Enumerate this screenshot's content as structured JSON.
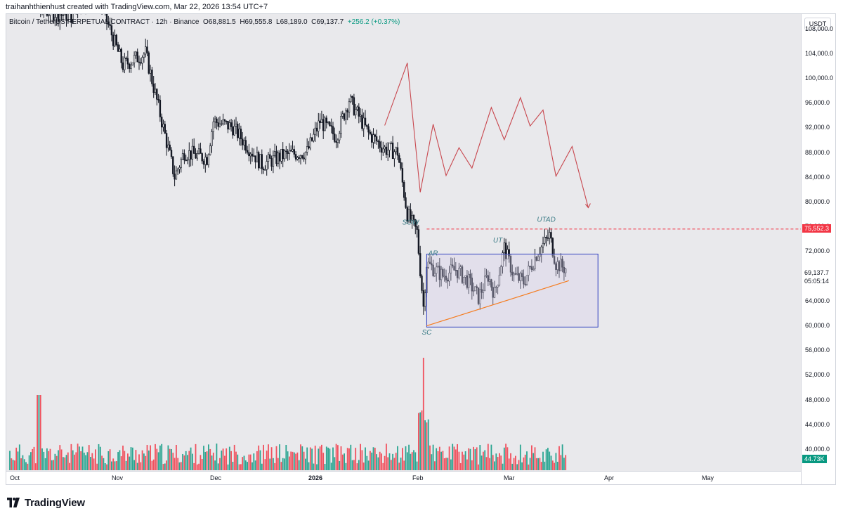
{
  "header": {
    "credit": "traihanhthienhust created with TradingView.com, Mar 22, 2026 13:54 UTC+7"
  },
  "legend": {
    "symbol": "Bitcoin / TetherUS PERPETUAL CONTRACT · 12h · Binance",
    "open": "O68,881.5",
    "high": "H69,555.8",
    "low": "L68,189.0",
    "close": "C69,137.7",
    "change": "+256.2 (+0.37%)"
  },
  "price_scale": {
    "currency": "USDT",
    "ticks": [
      "108,000.0",
      "104,000.0",
      "100,000.0",
      "96,000.0",
      "92,000.0",
      "88,000.0",
      "84,000.0",
      "80,000.0",
      "76,000.0",
      "72,000.0",
      "68,000.0",
      "64,000.0",
      "60,000.0",
      "56,000.0",
      "52,000.0",
      "48,000.0",
      "44,000.0",
      "40,000.0"
    ],
    "alert_label": "75,552.3",
    "last_price": "69,137.7",
    "countdown": "05:05:14",
    "volume_label": "44.73K"
  },
  "time_scale": {
    "ticks": [
      "Oct",
      "Nov",
      "Dec",
      "2026",
      "Feb",
      "Mar",
      "Apr",
      "May"
    ]
  },
  "annotations": [
    "SOW",
    "AR",
    "UT",
    "UTAD",
    "SC"
  ],
  "colors": {
    "up": "#089981",
    "down": "#f23645",
    "projection": "#c8474e",
    "range_box": "#2f3fbf",
    "trendline": "#f57c1f",
    "alert": "#f23645"
  },
  "brand": "TradingView",
  "chart_data": {
    "type": "candlestick",
    "title": "Bitcoin / TetherUS PERPETUAL CONTRACT",
    "interval": "12h",
    "exchange": "Binance",
    "ylim": [
      38800,
      110000
    ],
    "price_anchors": [
      {
        "date": "2025-10-01",
        "price": 112000
      },
      {
        "date": "2025-10-06",
        "price": 125000
      },
      {
        "date": "2025-10-10",
        "price": 111000
      },
      {
        "date": "2025-10-20",
        "price": 110000
      },
      {
        "date": "2025-10-27",
        "price": 115000
      },
      {
        "date": "2025-11-05",
        "price": 102000
      },
      {
        "date": "2025-11-12",
        "price": 104000
      },
      {
        "date": "2025-11-17",
        "price": 93000
      },
      {
        "date": "2025-11-21",
        "price": 84000
      },
      {
        "date": "2025-11-24",
        "price": 88000
      },
      {
        "date": "2025-12-01",
        "price": 87000
      },
      {
        "date": "2025-12-03",
        "price": 93000
      },
      {
        "date": "2025-12-09",
        "price": 92000
      },
      {
        "date": "2025-12-18",
        "price": 86000
      },
      {
        "date": "2025-12-25",
        "price": 87500
      },
      {
        "date": "2026-01-01",
        "price": 88000
      },
      {
        "date": "2026-01-05",
        "price": 93000
      },
      {
        "date": "2026-01-10",
        "price": 90500
      },
      {
        "date": "2026-01-14",
        "price": 96500
      },
      {
        "date": "2026-01-20",
        "price": 91000
      },
      {
        "date": "2026-01-25",
        "price": 88500
      },
      {
        "date": "2026-01-29",
        "price": 88000
      },
      {
        "date": "2026-02-01",
        "price": 78000
      },
      {
        "date": "2026-02-04",
        "price": 75000
      },
      {
        "date": "2026-02-06",
        "price": 63000
      },
      {
        "date": "2026-02-07",
        "price": 70000
      },
      {
        "date": "2026-02-12",
        "price": 68000
      },
      {
        "date": "2026-02-16",
        "price": 69000
      },
      {
        "date": "2026-02-20",
        "price": 67000
      },
      {
        "date": "2026-02-23",
        "price": 64500
      },
      {
        "date": "2026-02-26",
        "price": 68000
      },
      {
        "date": "2026-02-28",
        "price": 65000
      },
      {
        "date": "2026-03-03",
        "price": 72500
      },
      {
        "date": "2026-03-06",
        "price": 68000
      },
      {
        "date": "2026-03-09",
        "price": 67000
      },
      {
        "date": "2026-03-13",
        "price": 71500
      },
      {
        "date": "2026-03-17",
        "price": 74500
      },
      {
        "date": "2026-03-19",
        "price": 70000
      },
      {
        "date": "2026-03-22",
        "price": 69137.7
      }
    ],
    "projection_path": [
      {
        "date": "2026-01-25",
        "price": 92300
      },
      {
        "date": "2026-02-01",
        "price": 102400
      },
      {
        "date": "2026-02-05",
        "price": 81500
      },
      {
        "date": "2026-02-09",
        "price": 92500
      },
      {
        "date": "2026-02-13",
        "price": 84200
      },
      {
        "date": "2026-02-17",
        "price": 88700
      },
      {
        "date": "2026-02-21",
        "price": 85400
      },
      {
        "date": "2026-02-27",
        "price": 95200
      },
      {
        "date": "2026-03-03",
        "price": 90000
      },
      {
        "date": "2026-03-08",
        "price": 96800
      },
      {
        "date": "2026-03-11",
        "price": 92200
      },
      {
        "date": "2026-03-15",
        "price": 94800
      },
      {
        "date": "2026-03-19",
        "price": 84100
      },
      {
        "date": "2026-03-24",
        "price": 88900
      },
      {
        "date": "2026-03-29",
        "price": 79000
      }
    ],
    "range_box": {
      "start": "2026-02-07",
      "end": "2026-04-01",
      "top": 71500,
      "bottom": 59700
    },
    "trendline": {
      "start": {
        "date": "2026-02-07",
        "price": 59900
      },
      "end": {
        "date": "2026-03-23",
        "price": 67200
      }
    },
    "alert_level": 75552.3,
    "events": [
      {
        "label": "SOW",
        "date": "2026-02-02",
        "price": 76300
      },
      {
        "label": "AR",
        "date": "2026-02-09",
        "price": 71300
      },
      {
        "label": "UT",
        "date": "2026-03-01",
        "price": 73400
      },
      {
        "label": "UTAD",
        "date": "2026-03-16",
        "price": 76700
      },
      {
        "label": "SC",
        "date": "2026-02-07",
        "price": 58500
      }
    ]
  }
}
